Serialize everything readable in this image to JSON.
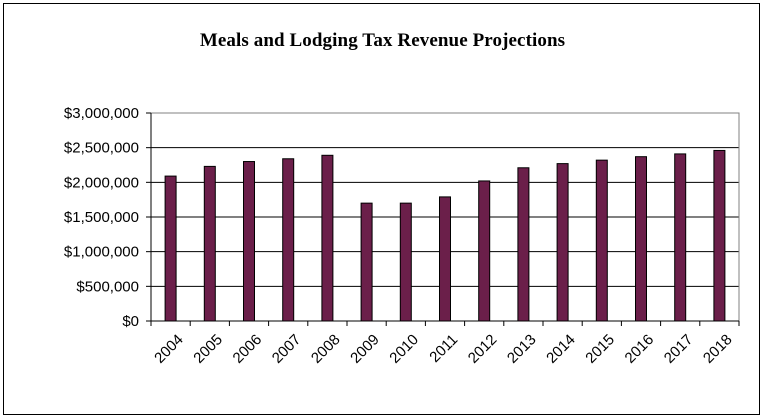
{
  "chart_data": {
    "type": "bar",
    "title": "Meals and Lodging Tax Revenue Projections",
    "xlabel": "",
    "ylabel": "",
    "categories": [
      "2004",
      "2005",
      "2006",
      "2007",
      "2008",
      "2009",
      "2010",
      "2011",
      "2012",
      "2013",
      "2014",
      "2015",
      "2016",
      "2017",
      "2018"
    ],
    "series": [
      {
        "values": [
          2090000,
          2230000,
          2300000,
          2340000,
          2390000,
          1700000,
          1700000,
          1790000,
          2020000,
          2210000,
          2270000,
          2320000,
          2370000,
          2410000,
          2460000
        ]
      }
    ],
    "ylim": [
      0,
      3000000
    ],
    "yticks": [
      0,
      500000,
      1000000,
      1500000,
      2000000,
      2500000,
      3000000
    ],
    "ytick_labels": [
      "$0",
      "$500,000",
      "$1,000,000",
      "$1,500,000",
      "$2,000,000",
      "$2,500,000",
      "$3,000,000"
    ],
    "grid": true,
    "legend": "none",
    "bar_color": "#6b1f4a",
    "bar_outline": "#000000"
  }
}
